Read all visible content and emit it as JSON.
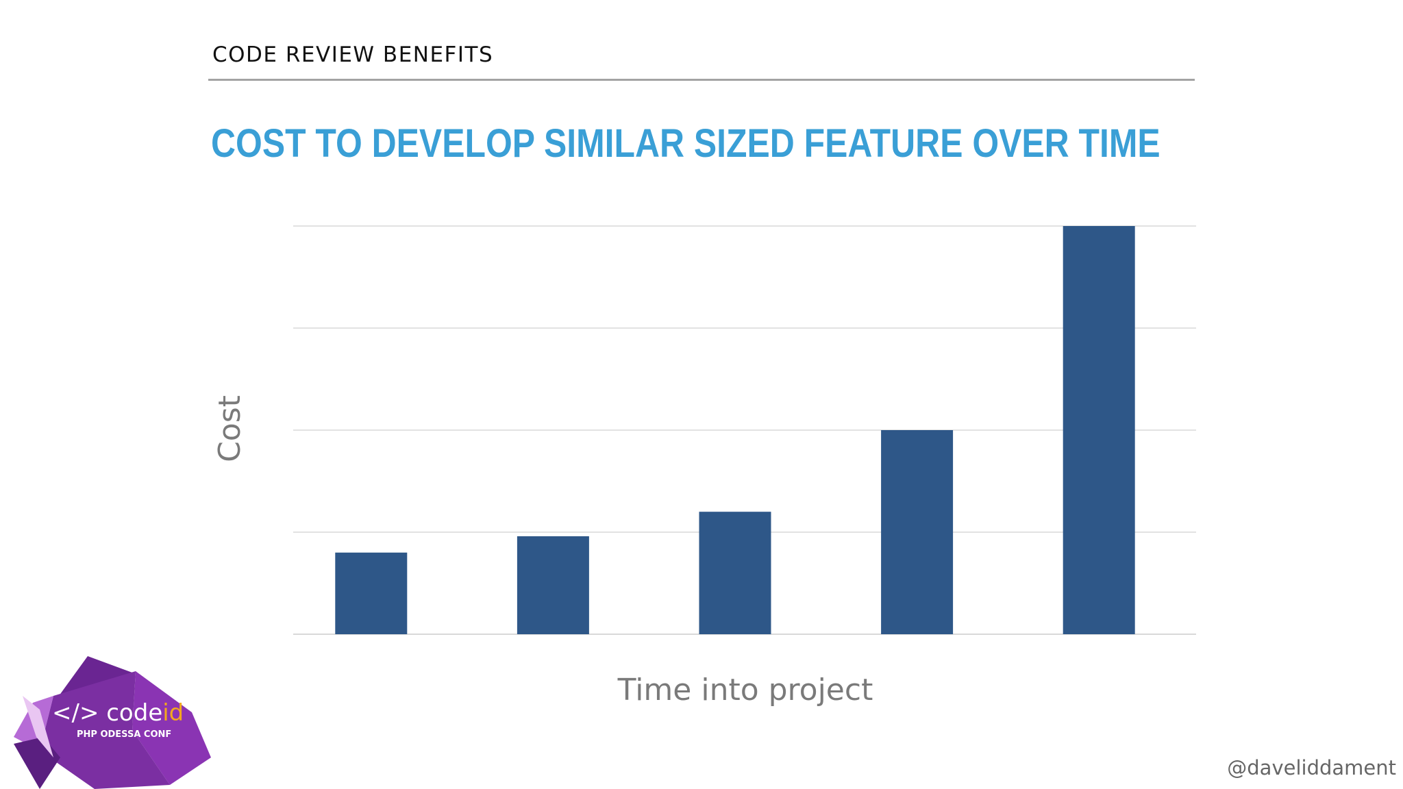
{
  "header": {
    "section_title": "CODE REVIEW BENEFITS",
    "slide_title": "COST TO DEVELOP SIMILAR SIZED FEATURE OVER TIME"
  },
  "chart_data": {
    "type": "bar",
    "title": "COST TO DEVELOP SIMILAR SIZED FEATURE OVER TIME",
    "xlabel": "Time into project",
    "ylabel": "Cost",
    "categories": [
      "",
      "",
      "",
      "",
      ""
    ],
    "values": [
      0.8,
      0.96,
      1.2,
      2.0,
      4.0
    ],
    "ylim": [
      0,
      4
    ],
    "grid": true,
    "tick_labels_shown": false,
    "bar_color": "#2e5788",
    "grid_color": "#d9d9d9"
  },
  "logo": {
    "text_main": "</> code",
    "text_accent": "id",
    "text_sub": "PHP ODESSA CONF",
    "colors": {
      "primary": "#7b2fa2",
      "dark": "#5a1f80",
      "light": "#b66bd6",
      "accent": "#f2a81d"
    }
  },
  "footer": {
    "handle": "@daveliddament"
  }
}
